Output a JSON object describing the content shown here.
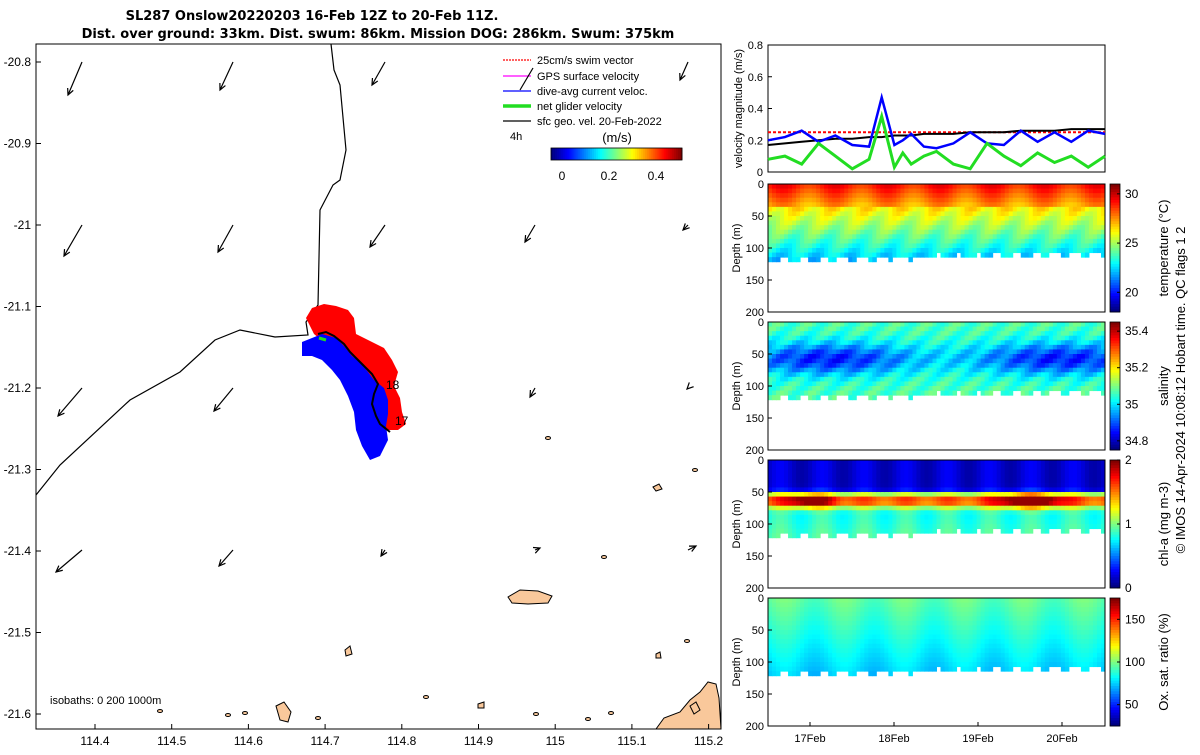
{
  "title": {
    "line1": "SL287 Onslow20220203 16-Feb 12Z to 20-Feb 11Z.",
    "line2": "Dist. over ground: 33km. Dist. swum: 86km. Mission DOG: 286km. Swum: 375km"
  },
  "map": {
    "lat_ticks": [
      "-20.8",
      "-20.9",
      "-21",
      "-21.1",
      "-21.2",
      "-21.3",
      "-21.4",
      "-21.5",
      "-21.6"
    ],
    "lon_ticks": [
      "114.4",
      "114.5",
      "114.6",
      "114.7",
      "114.8",
      "114.9",
      "115",
      "115.1",
      "115.2"
    ],
    "legend": [
      {
        "label": "25cm/s swim vector",
        "color": "#ff0000"
      },
      {
        "label": "GPS surface velocity",
        "color": "#ff00ff"
      },
      {
        "label": "dive-avg current veloc.",
        "color": "#0000ff"
      },
      {
        "label": "net glider velocity",
        "color": "#22dd22"
      },
      {
        "label": "sfc geo. vel. 20-Feb-2022",
        "color": "#000000"
      }
    ],
    "scale_label": "4h",
    "colorbar": {
      "title": "(m/s)",
      "ticks": [
        "0",
        "0.2",
        "0.4"
      ]
    },
    "track_labels": [
      "18",
      "17"
    ],
    "isobaths": "isobaths: 0   200  1000m",
    "land_color": "#f9c89b"
  },
  "chart_data": [
    {
      "type": "line",
      "ylabel": "velocity magnitude (m/s)",
      "ylim": [
        0,
        0.8
      ],
      "yticks": [
        "0",
        "0.2",
        "0.4",
        "0.6",
        "0.8"
      ],
      "x": [
        0,
        0.2,
        0.4,
        0.6,
        0.8,
        1,
        1.2,
        1.35,
        1.5,
        1.6,
        1.7,
        1.85,
        2,
        2.2,
        2.4,
        2.6,
        2.8,
        3,
        3.2,
        3.4,
        3.6,
        3.8,
        4
      ],
      "series": [
        {
          "color": "#ff0000",
          "values": [
            0.25,
            0.25,
            0.25,
            0.25,
            0.25,
            0.25,
            0.25,
            0.25,
            0.25,
            0.25,
            0.25,
            0.25,
            0.25,
            0.25,
            0.25,
            0.25,
            0.25,
            0.25,
            0.25,
            0.25,
            0.25,
            0.25,
            0.25
          ]
        },
        {
          "color": "#000000",
          "values": [
            0.17,
            0.18,
            0.19,
            0.2,
            0.21,
            0.21,
            0.22,
            0.22,
            0.23,
            0.23,
            0.23,
            0.24,
            0.24,
            0.24,
            0.25,
            0.25,
            0.25,
            0.26,
            0.26,
            0.26,
            0.27,
            0.27,
            0.27
          ]
        },
        {
          "color": "#0000ff",
          "values": [
            0.2,
            0.22,
            0.26,
            0.19,
            0.23,
            0.17,
            0.16,
            0.47,
            0.17,
            0.2,
            0.24,
            0.16,
            0.15,
            0.18,
            0.25,
            0.18,
            0.17,
            0.26,
            0.19,
            0.25,
            0.19,
            0.26,
            0.24
          ]
        },
        {
          "color": "#22dd22",
          "values": [
            0.08,
            0.1,
            0.05,
            0.18,
            0.1,
            0.02,
            0.08,
            0.35,
            0.03,
            0.12,
            0.05,
            0.1,
            0.13,
            0.05,
            0.02,
            0.18,
            0.1,
            0.04,
            0.12,
            0.06,
            0.1,
            0.03,
            0.1
          ]
        }
      ]
    },
    {
      "type": "heatmap",
      "ylabel": "Depth (m)",
      "colorbar_label": "temperature (°C)",
      "cbar_range": [
        18,
        31
      ],
      "cbar_ticks": [
        "30",
        "25",
        "20"
      ],
      "depth_ticks": [
        "0",
        "50",
        "100",
        "150",
        "200"
      ]
    },
    {
      "type": "heatmap",
      "ylabel": "Depth (m)",
      "colorbar_label": "salinity",
      "cbar_range": [
        34.75,
        35.45
      ],
      "cbar_ticks": [
        "35.4",
        "35.2",
        "35",
        "34.8"
      ],
      "depth_ticks": [
        "0",
        "50",
        "100",
        "150",
        "200"
      ]
    },
    {
      "type": "heatmap",
      "ylabel": "Depth (m)",
      "colorbar_label": "chl-a (mg m-3)",
      "cbar_range": [
        0,
        2
      ],
      "cbar_ticks": [
        "2",
        "1",
        "0"
      ],
      "depth_ticks": [
        "0",
        "50",
        "100",
        "150",
        "200"
      ]
    },
    {
      "type": "heatmap",
      "ylabel": "Depth (m)",
      "colorbar_label": "Ox. sat. ratio (%)",
      "cbar_range": [
        25,
        175
      ],
      "cbar_ticks": [
        "150",
        "100",
        "50"
      ],
      "depth_ticks": [
        "0",
        "50",
        "100",
        "150",
        "200"
      ],
      "x_ticks": [
        "17Feb",
        "18Feb",
        "19Feb",
        "20Feb"
      ]
    }
  ],
  "footer": "© IMOS 14-Apr-2024 10:08:12 Hobart time. QC flags 1  2"
}
